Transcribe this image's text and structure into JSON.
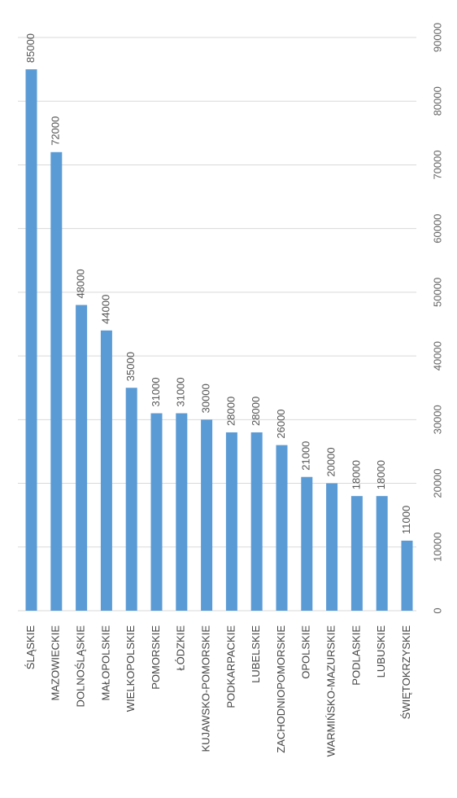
{
  "chart_data": {
    "type": "bar",
    "orientation": "rotated-vertical",
    "categories": [
      "ŚLĄSKIE",
      "MAZOWIECKIE",
      "DOLNOŚLĄSKIE",
      "MAŁOPOLSKIE",
      "WIELKOPOLSKIE",
      "POMORSKIE",
      "ŁÓDZKIE",
      "KUJAWSKO-POMORSKIE",
      "PODKARPACKIE",
      "LUBELSKIE",
      "ZACHODNIOPOMORSKIE",
      "OPOLSKIE",
      "WARMIŃSKO-MAZURSKIE",
      "PODLASKIE",
      "LUBUSKIE",
      "ŚWIĘTOKRZYSKIE"
    ],
    "values": [
      85000,
      72000,
      48000,
      44000,
      35000,
      31000,
      31000,
      30000,
      28000,
      28000,
      26000,
      21000,
      20000,
      18000,
      18000,
      11000
    ],
    "data_labels": [
      "85000",
      "72000",
      "48000",
      "44000",
      "35000",
      "31000",
      "31000",
      "30000",
      "28000",
      "28000",
      "26000",
      "21000",
      "20000",
      "18000",
      "18000",
      "11000"
    ],
    "ylim": [
      0,
      90000
    ],
    "y_ticks": [
      "0",
      "10000",
      "20000",
      "30000",
      "40000",
      "50000",
      "60000",
      "70000",
      "80000",
      "90000"
    ],
    "grid": true,
    "colors": {
      "bar": "#5b9bd5",
      "grid": "#d9d9d9"
    }
  }
}
